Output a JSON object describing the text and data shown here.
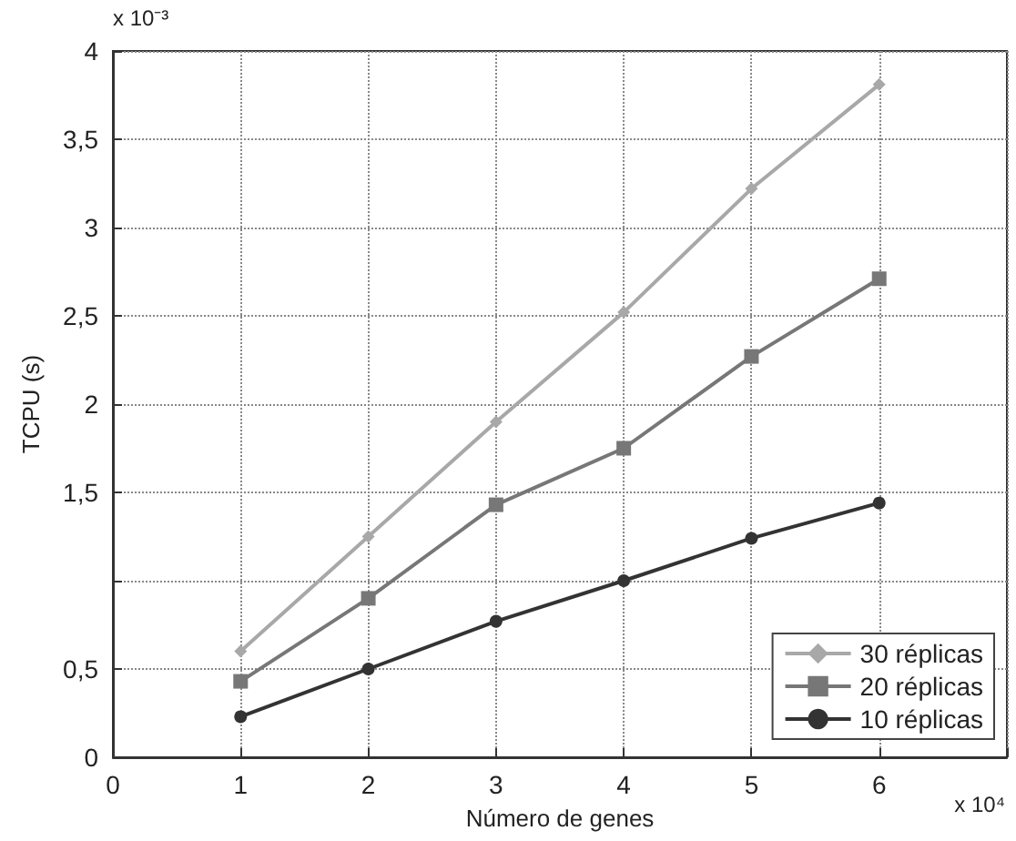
{
  "chart_data": {
    "type": "line",
    "xlabel": "Número de genes",
    "ylabel": "TCPU (s)",
    "annotations": [
      "x 10⁻³",
      "x 10⁴"
    ],
    "x": [
      1,
      2,
      3,
      4,
      5,
      6
    ],
    "series": [
      {
        "name": "30 réplicas",
        "color": "#a8a8a8",
        "marker": "diamond",
        "values": [
          0.6,
          1.25,
          1.9,
          2.52,
          3.22,
          3.81
        ]
      },
      {
        "name": "20 réplicas",
        "color": "#777777",
        "marker": "square",
        "values": [
          0.43,
          0.9,
          1.43,
          1.75,
          2.27,
          2.71
        ]
      },
      {
        "name": "10 réplicas",
        "color": "#333333",
        "marker": "circle",
        "values": [
          0.23,
          0.5,
          0.77,
          1.0,
          1.24,
          1.44
        ]
      }
    ],
    "xlim": [
      0,
      7
    ],
    "xticks": [
      0,
      1,
      2,
      3,
      4,
      5,
      6,
      {
        "value": 7,
        "label": null
      }
    ],
    "ylim": [
      0,
      4
    ],
    "yticks": [
      0,
      {
        "value": 0.5,
        "label": "0,5"
      },
      {
        "value": 1,
        "label": null
      },
      {
        "value": 1.5,
        "label": "1,5"
      },
      2,
      {
        "value": 2.5,
        "label": "2,5"
      },
      3,
      {
        "value": 3.5,
        "label": "3,5"
      },
      4
    ],
    "grid": true,
    "legend": "bottom right",
    "line_style": "solid"
  }
}
